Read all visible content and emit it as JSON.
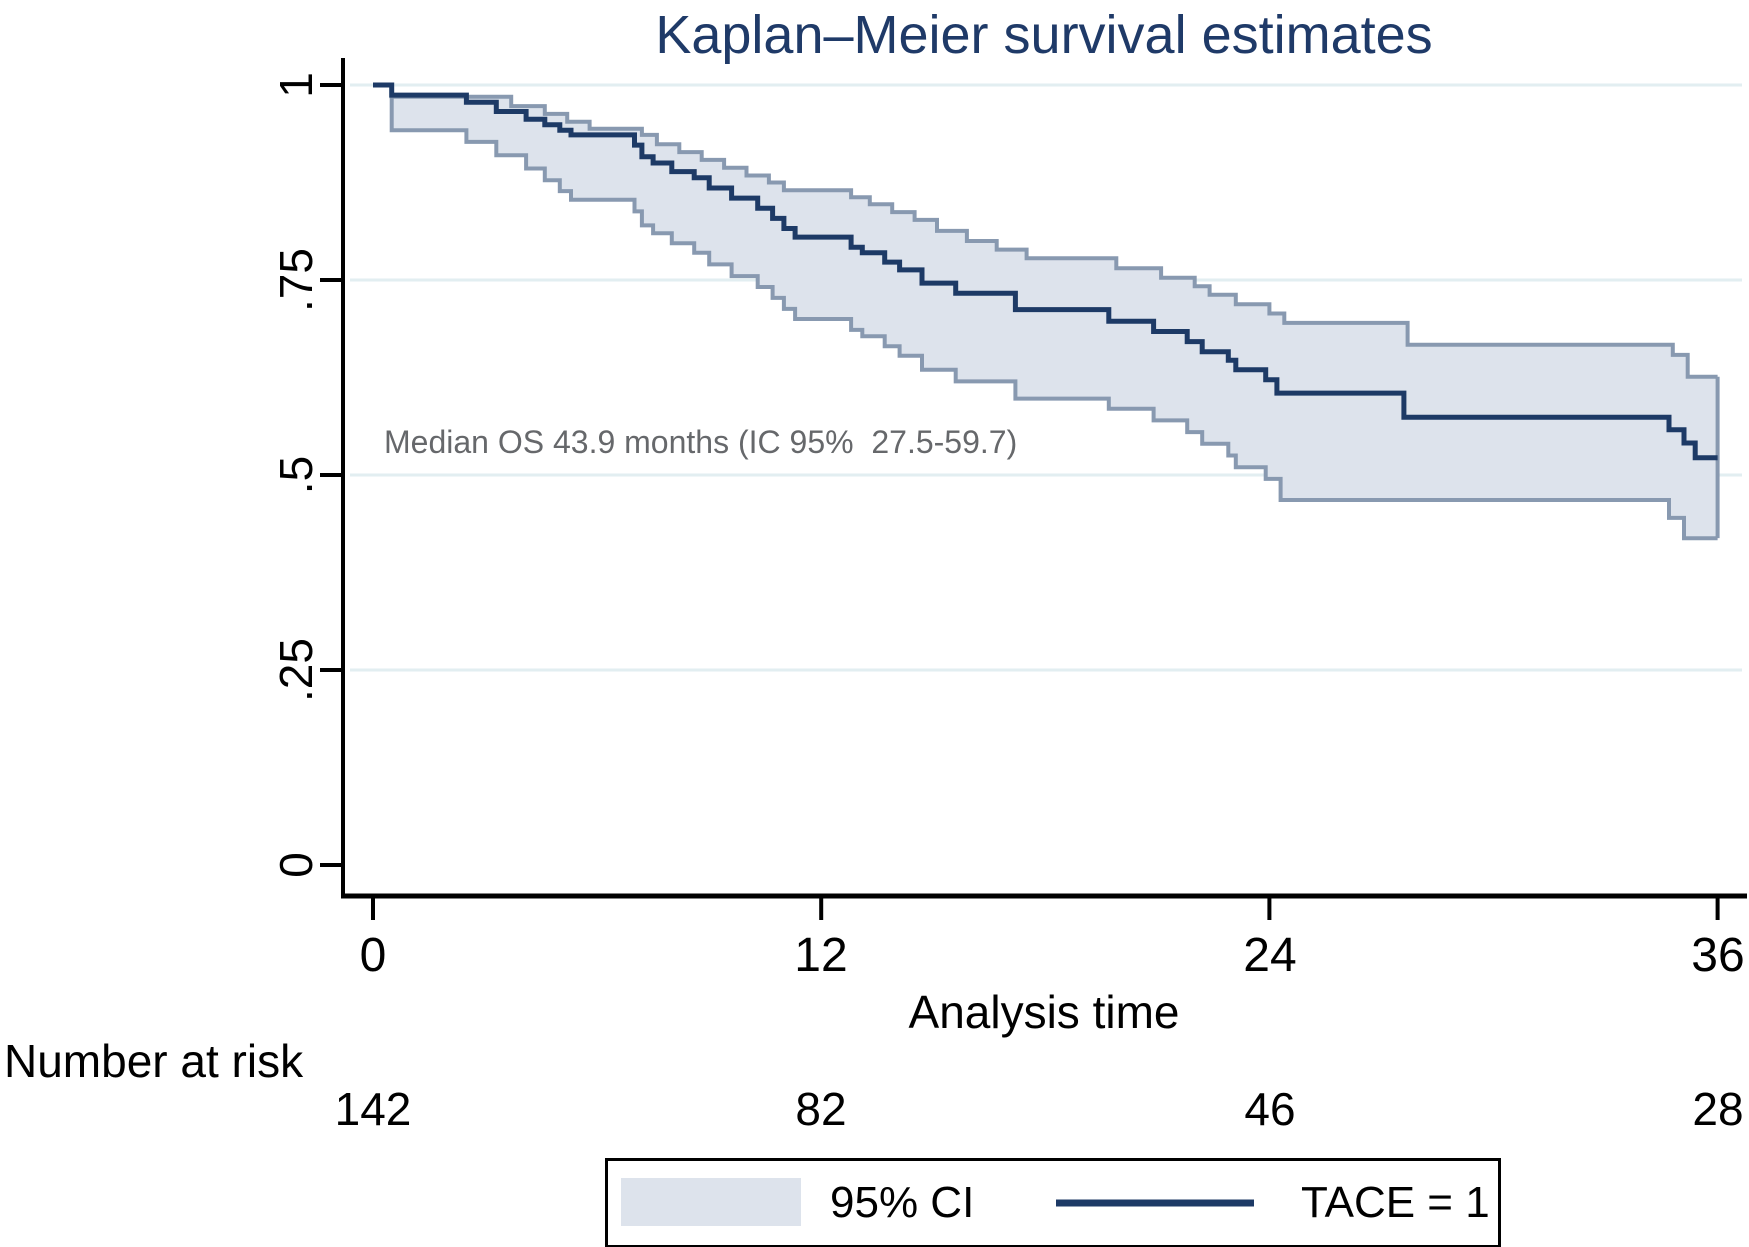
{
  "title": "Kaplan–Meier survival estimates",
  "annotation": "Median OS 43.9 months (IC 95%  27.5-59.7)",
  "x_axis": {
    "label": "Analysis time",
    "ticks": [
      "0",
      "12",
      "24",
      "36"
    ]
  },
  "y_axis": {
    "ticks": [
      "1",
      ".75",
      ".5",
      ".25",
      "0"
    ]
  },
  "risk_table": {
    "label": "Number at risk",
    "values": [
      "142",
      "82",
      "46",
      "28"
    ]
  },
  "legend": {
    "ci_label": "95% CI",
    "series_label": "TACE = 1"
  },
  "colors": {
    "line": "#1d3a66",
    "ci_fill": "#dde3ec",
    "ci_edge": "#8899b0",
    "grid": "#e2eef1",
    "axis": "#000000",
    "title_text": "#1f3a68",
    "annotation_text": "#66686b"
  },
  "chart_data": {
    "type": "line",
    "subtype": "kaplan-meier-step",
    "title": "Kaplan–Meier survival estimates",
    "xlabel": "Analysis time",
    "ylabel": "",
    "x_range": [
      0,
      36
    ],
    "y_range": [
      0,
      1
    ],
    "x_ticks": [
      0,
      12,
      24,
      36
    ],
    "y_ticks": [
      1,
      0.75,
      0.5,
      0.25,
      0
    ],
    "grid": true,
    "legend_position": "bottom",
    "annotation": "Median OS 43.9 months (IC 95%  27.5-59.7)",
    "median_os_months": 43.9,
    "median_os_ci95": [
      27.5,
      59.7
    ],
    "number_at_risk": {
      "label": "Number at risk",
      "times": [
        0,
        12,
        24,
        36
      ],
      "counts": [
        142,
        82,
        46,
        28
      ]
    },
    "series": [
      {
        "name": "TACE = 1",
        "role": "survival",
        "steps": [
          [
            0,
            1
          ],
          [
            0.5,
            0.987
          ],
          [
            2.5,
            0.978
          ],
          [
            3.3,
            0.966
          ],
          [
            4.1,
            0.956
          ],
          [
            4.6,
            0.949
          ],
          [
            5.0,
            0.942
          ],
          [
            5.3,
            0.936
          ],
          [
            7.0,
            0.923
          ],
          [
            7.2,
            0.908
          ],
          [
            7.5,
            0.9
          ],
          [
            8.0,
            0.889
          ],
          [
            8.6,
            0.881
          ],
          [
            9.0,
            0.868
          ],
          [
            9.6,
            0.855
          ],
          [
            10.3,
            0.842
          ],
          [
            10.7,
            0.829
          ],
          [
            11.0,
            0.816
          ],
          [
            11.3,
            0.805
          ],
          [
            12.8,
            0.792
          ],
          [
            13.1,
            0.785
          ],
          [
            13.7,
            0.773
          ],
          [
            14.1,
            0.763
          ],
          [
            14.7,
            0.746
          ],
          [
            15.6,
            0.733
          ],
          [
            17.2,
            0.712
          ],
          [
            19.7,
            0.697
          ],
          [
            20.9,
            0.684
          ],
          [
            21.8,
            0.671
          ],
          [
            22.2,
            0.658
          ],
          [
            22.9,
            0.647
          ],
          [
            23.1,
            0.635
          ],
          [
            23.9,
            0.622
          ],
          [
            24.2,
            0.605
          ],
          [
            27.6,
            0.574
          ],
          [
            34.7,
            0.558
          ],
          [
            35.1,
            0.541
          ],
          [
            35.4,
            0.522
          ],
          [
            36,
            0.522
          ]
        ]
      },
      {
        "name": "95% CI",
        "role": "ci_upper",
        "steps": [
          [
            0,
            1
          ],
          [
            0.5,
            0.985
          ],
          [
            3.7,
            0.973
          ],
          [
            4.6,
            0.963
          ],
          [
            5.2,
            0.953
          ],
          [
            5.8,
            0.944
          ],
          [
            7.2,
            0.936
          ],
          [
            7.6,
            0.924
          ],
          [
            8.2,
            0.914
          ],
          [
            8.8,
            0.904
          ],
          [
            9.4,
            0.894
          ],
          [
            10.0,
            0.884
          ],
          [
            10.6,
            0.875
          ],
          [
            11.0,
            0.865
          ],
          [
            12.8,
            0.856
          ],
          [
            13.3,
            0.847
          ],
          [
            13.9,
            0.837
          ],
          [
            14.5,
            0.827
          ],
          [
            15.1,
            0.813
          ],
          [
            15.9,
            0.8
          ],
          [
            16.7,
            0.789
          ],
          [
            17.5,
            0.778
          ],
          [
            19.9,
            0.765
          ],
          [
            21.1,
            0.753
          ],
          [
            22.0,
            0.742
          ],
          [
            22.4,
            0.731
          ],
          [
            23.1,
            0.719
          ],
          [
            24.0,
            0.707
          ],
          [
            24.4,
            0.695
          ],
          [
            27.7,
            0.667
          ],
          [
            34.8,
            0.654
          ],
          [
            35.2,
            0.626
          ],
          [
            36,
            0.626
          ]
        ]
      },
      {
        "name": "95% CI",
        "role": "ci_lower",
        "steps": [
          [
            0,
            1
          ],
          [
            0.5,
            0.942
          ],
          [
            2.5,
            0.927
          ],
          [
            3.3,
            0.91
          ],
          [
            4.1,
            0.893
          ],
          [
            4.6,
            0.878
          ],
          [
            5.0,
            0.864
          ],
          [
            5.3,
            0.853
          ],
          [
            7.0,
            0.838
          ],
          [
            7.2,
            0.82
          ],
          [
            7.5,
            0.81
          ],
          [
            8.0,
            0.797
          ],
          [
            8.6,
            0.785
          ],
          [
            9.0,
            0.77
          ],
          [
            9.6,
            0.755
          ],
          [
            10.3,
            0.741
          ],
          [
            10.7,
            0.727
          ],
          [
            11.0,
            0.713
          ],
          [
            11.3,
            0.7
          ],
          [
            12.8,
            0.686
          ],
          [
            13.1,
            0.678
          ],
          [
            13.7,
            0.665
          ],
          [
            14.1,
            0.653
          ],
          [
            14.7,
            0.635
          ],
          [
            15.6,
            0.62
          ],
          [
            17.2,
            0.598
          ],
          [
            19.7,
            0.585
          ],
          [
            20.9,
            0.57
          ],
          [
            21.8,
            0.555
          ],
          [
            22.2,
            0.54
          ],
          [
            22.9,
            0.525
          ],
          [
            23.1,
            0.51
          ],
          [
            23.9,
            0.495
          ],
          [
            24.3,
            0.468
          ],
          [
            34.7,
            0.445
          ],
          [
            35.1,
            0.419
          ],
          [
            36,
            0.419
          ]
        ]
      }
    ]
  }
}
